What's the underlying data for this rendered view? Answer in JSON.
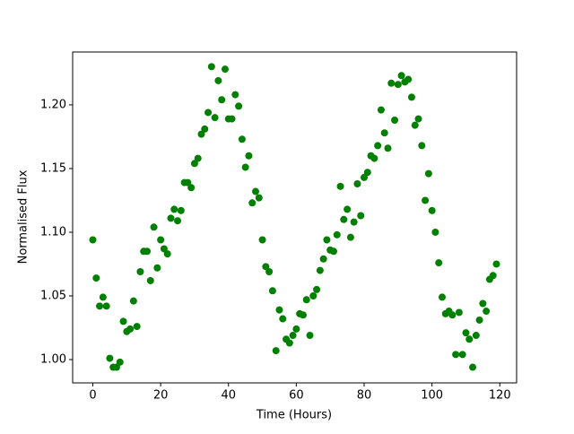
{
  "chart_data": {
    "type": "scatter",
    "xlabel": "Time (Hours)",
    "ylabel": "Normalised Flux",
    "color": "#008000",
    "x": [
      0,
      1,
      2,
      3,
      4,
      5,
      6,
      7,
      8,
      9,
      10,
      11,
      12,
      13,
      14,
      15,
      16,
      17,
      18,
      19,
      20,
      21,
      22,
      23,
      24,
      25,
      26,
      27,
      28,
      29,
      30,
      31,
      32,
      33,
      34,
      35,
      36,
      37,
      38,
      39,
      40,
      41,
      42,
      43,
      44,
      45,
      46,
      47,
      48,
      49,
      50,
      51,
      52,
      53,
      54,
      55,
      56,
      57,
      58,
      59,
      60,
      61,
      62,
      63,
      64,
      65,
      66,
      67,
      68,
      69,
      70,
      71,
      72,
      73,
      74,
      75,
      76,
      77,
      78,
      79,
      80,
      81,
      82,
      83,
      84,
      85,
      86,
      87,
      88,
      89,
      90,
      91,
      92,
      93,
      94,
      95,
      96,
      97,
      98,
      99,
      100,
      101,
      102,
      103,
      104,
      105,
      106,
      107,
      108,
      109,
      110,
      111,
      112,
      113,
      114,
      115,
      116,
      117,
      118,
      119
    ],
    "values": [
      1.094,
      1.064,
      1.042,
      1.049,
      1.042,
      1.001,
      0.994,
      0.994,
      0.998,
      1.03,
      1.022,
      1.024,
      1.046,
      1.026,
      1.069,
      1.085,
      1.085,
      1.062,
      1.104,
      1.072,
      1.094,
      1.087,
      1.083,
      1.111,
      1.118,
      1.109,
      1.117,
      1.139,
      1.139,
      1.135,
      1.154,
      1.158,
      1.177,
      1.181,
      1.194,
      1.23,
      1.19,
      1.219,
      1.204,
      1.228,
      1.189,
      1.189,
      1.208,
      1.199,
      1.173,
      1.151,
      1.16,
      1.123,
      1.132,
      1.127,
      1.094,
      1.073,
      1.069,
      1.054,
      1.007,
      1.039,
      1.032,
      1.016,
      1.013,
      1.019,
      1.024,
      1.036,
      1.035,
      1.047,
      1.019,
      1.05,
      1.055,
      1.07,
      1.079,
      1.094,
      1.086,
      1.085,
      1.098,
      1.136,
      1.11,
      1.118,
      1.096,
      1.108,
      1.138,
      1.113,
      1.143,
      1.147,
      1.16,
      1.158,
      1.168,
      1.196,
      1.178,
      1.166,
      1.217,
      1.188,
      1.216,
      1.223,
      1.218,
      1.22,
      1.206,
      1.184,
      1.189,
      1.168,
      1.125,
      1.146,
      1.117,
      1.1,
      1.076,
      1.049,
      1.036,
      1.038,
      1.035,
      1.004,
      1.037,
      1.004,
      1.021,
      1.016,
      0.994,
      1.019,
      1.031,
      1.044,
      1.038,
      1.063,
      1.066,
      1.075
    ],
    "xlim": [
      -5.95,
      124.95
    ],
    "xticks": [
      0,
      20,
      40,
      60,
      80,
      100,
      120
    ],
    "ylim": [
      0.9817,
      1.2415
    ],
    "yticks": [
      {
        "value": 1.0,
        "label": "1.00"
      },
      {
        "value": 1.05,
        "label": "1.05"
      },
      {
        "value": 1.1,
        "label": "1.10"
      },
      {
        "value": 1.15,
        "label": "1.15"
      },
      {
        "value": 1.2,
        "label": "1.20"
      }
    ]
  }
}
